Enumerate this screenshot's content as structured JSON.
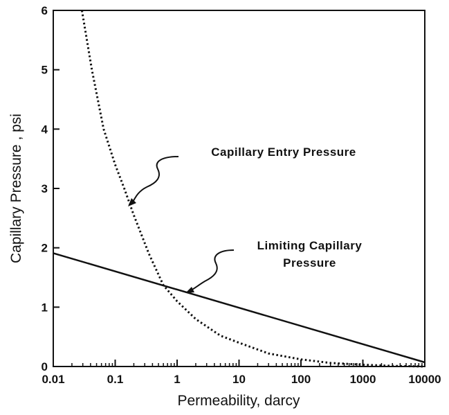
{
  "chart_data": {
    "type": "line",
    "xlabel": "Permeability, darcy",
    "ylabel": "Capillary Pressure , psi",
    "xscale": "log",
    "xlim": [
      0.01,
      10000
    ],
    "xticks": [
      0.01,
      0.1,
      1,
      10,
      100,
      1000,
      10000
    ],
    "ylim": [
      0,
      6
    ],
    "yticks": [
      0,
      1,
      2,
      3,
      4,
      5,
      6
    ],
    "minor_ticks": true,
    "series": [
      {
        "name": "Capillary Entry Pressure",
        "color": "#111111",
        "style": "dotted",
        "x": [
          0.029,
          0.042,
          0.065,
          0.1,
          0.14,
          0.2,
          0.35,
          0.6,
          1,
          2,
          5,
          10,
          30,
          100,
          300,
          1000,
          3000,
          10000
        ],
        "values": [
          6,
          5,
          4,
          3.4,
          3,
          2.55,
          1.9,
          1.37,
          1.1,
          0.8,
          0.52,
          0.4,
          0.22,
          0.12,
          0.06,
          0.03,
          0.01,
          0
        ]
      },
      {
        "name": "Limiting Capillary Pressure",
        "color": "#111111",
        "style": "solid",
        "x": [
          0.01,
          10000
        ],
        "values": [
          1.91,
          0.07
        ]
      }
    ]
  }
}
